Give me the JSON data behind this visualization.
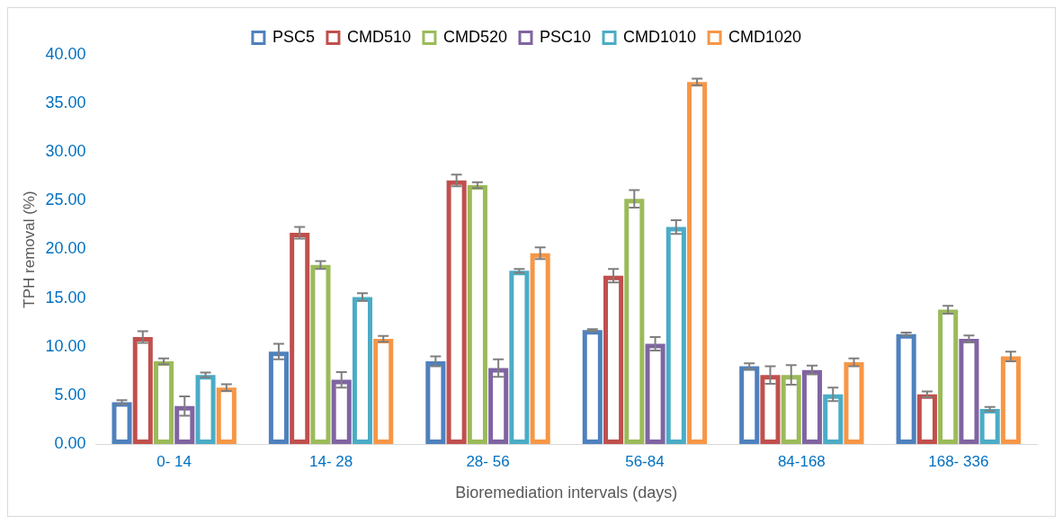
{
  "chart_data": {
    "type": "bar",
    "xlabel": "Bioremediation intervals (days)",
    "ylabel": "TPH removal (%)",
    "categories": [
      "0- 14",
      "14- 28",
      "28- 56",
      "56-84",
      "84-168",
      "168- 336"
    ],
    "series": [
      {
        "name": "PSC5",
        "color": "#4f81bd",
        "values": [
          4.3,
          9.5,
          8.5,
          11.7,
          8.0,
          11.3
        ],
        "errors": [
          0.2,
          0.8,
          0.5,
          0.1,
          0.3,
          0.15
        ]
      },
      {
        "name": "CMD510",
        "color": "#c0504d",
        "values": [
          11.0,
          21.7,
          27.1,
          17.3,
          7.1,
          5.1
        ],
        "errors": [
          0.6,
          0.6,
          0.6,
          0.7,
          0.9,
          0.3
        ]
      },
      {
        "name": "CMD520",
        "color": "#9bbb59",
        "values": [
          8.5,
          18.4,
          26.6,
          25.2,
          7.1,
          13.8
        ],
        "errors": [
          0.3,
          0.4,
          0.3,
          0.9,
          1.0,
          0.4
        ]
      },
      {
        "name": "PSC10",
        "color": "#8064a2",
        "values": [
          3.9,
          6.6,
          7.8,
          10.3,
          7.6,
          10.8
        ],
        "errors": [
          1.0,
          0.8,
          0.9,
          0.7,
          0.45,
          0.35
        ]
      },
      {
        "name": "CMD1010",
        "color": "#4bacc6",
        "values": [
          7.1,
          15.1,
          17.8,
          22.3,
          5.1,
          3.6
        ],
        "errors": [
          0.25,
          0.4,
          0.2,
          0.7,
          0.7,
          0.2
        ]
      },
      {
        "name": "CMD1020",
        "color": "#f79646",
        "values": [
          5.8,
          10.8,
          19.6,
          37.2,
          8.4,
          9.0
        ],
        "errors": [
          0.35,
          0.3,
          0.6,
          0.35,
          0.4,
          0.5
        ]
      }
    ],
    "ylim": [
      0,
      40
    ],
    "yticks": [
      {
        "value": 0,
        "label": "0.00"
      },
      {
        "value": 5,
        "label": "5.00"
      },
      {
        "value": 10,
        "label": "10.00"
      },
      {
        "value": 15,
        "label": "15.00"
      },
      {
        "value": 20,
        "label": "20.00"
      },
      {
        "value": 25,
        "label": "25.00"
      },
      {
        "value": 30,
        "label": "30.00"
      },
      {
        "value": 35,
        "label": "35.00"
      },
      {
        "value": 40,
        "label": "40.00"
      }
    ],
    "grid": false,
    "legend": "top"
  }
}
